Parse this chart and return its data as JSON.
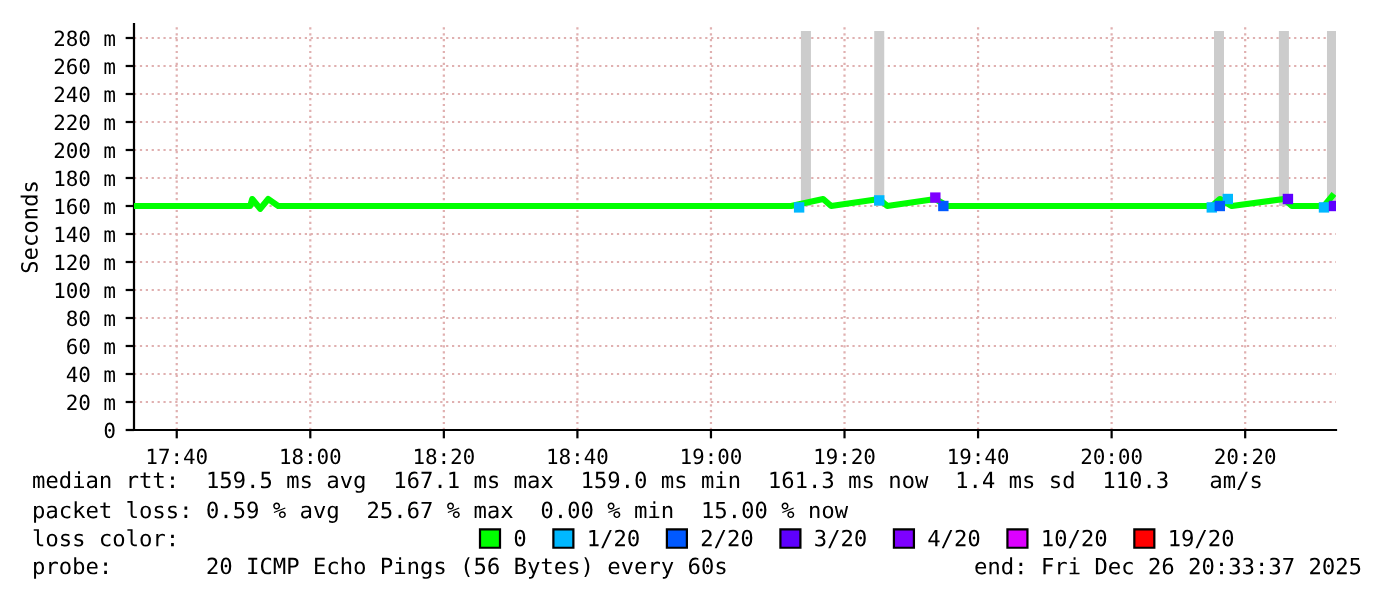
{
  "chart_data": {
    "type": "line",
    "ylabel": "Seconds",
    "legend_title": "loss color:",
    "legend": "bottom",
    "grid": true,
    "xlim": [
      17.56,
      20.56
    ],
    "ylim": [
      0,
      290
    ],
    "xticks": [
      {
        "value": 17.666667,
        "label": "17:40"
      },
      {
        "value": 18,
        "label": "18:00"
      },
      {
        "value": 18.333333,
        "label": "18:20"
      },
      {
        "value": 18.666667,
        "label": "18:40"
      },
      {
        "value": 19,
        "label": "19:00"
      },
      {
        "value": 19.333333,
        "label": "19:20"
      },
      {
        "value": 19.666667,
        "label": "19:40"
      },
      {
        "value": 20,
        "label": "20:00"
      },
      {
        "value": 20.333333,
        "label": "20:20"
      }
    ],
    "yticks": [
      0,
      {
        "value": 20,
        "label": "20 m"
      },
      {
        "value": 40,
        "label": "40 m"
      },
      {
        "value": 60,
        "label": "60 m"
      },
      {
        "value": 80,
        "label": "80 m"
      },
      {
        "value": 100,
        "label": "100 m"
      },
      {
        "value": 120,
        "label": "120 m"
      },
      {
        "value": 140,
        "label": "140 m"
      },
      {
        "value": 160,
        "label": "160 m"
      },
      {
        "value": 180,
        "label": "180 m"
      },
      {
        "value": 200,
        "label": "200 m"
      },
      {
        "value": 220,
        "label": "220 m"
      },
      {
        "value": 240,
        "label": "240 m"
      },
      {
        "value": 260,
        "label": "260 m"
      },
      {
        "value": 280,
        "label": "280 m"
      }
    ],
    "series": [
      {
        "type": "bar",
        "color": "#cccccc",
        "x": [
          19.237,
          19.42,
          20.268,
          20.43,
          20.55
        ],
        "base": [
          160,
          160,
          160,
          160,
          160
        ],
        "values": [
          125,
          125,
          125,
          125,
          125
        ]
      },
      {
        "name": "0",
        "color": "#00ff00",
        "x": [
          17.56,
          17.7,
          17.85,
          17.855,
          17.875,
          17.895,
          17.92,
          18.2,
          18.5,
          18.8,
          19.1,
          19.2,
          19.28,
          19.3,
          19.42,
          19.44,
          19.56,
          19.59,
          19.8,
          20.0,
          20.25,
          20.27,
          20.3,
          20.43,
          20.45,
          20.53,
          20.55
        ],
        "values": [
          160,
          160,
          160,
          165,
          158,
          165,
          160,
          160,
          160,
          160,
          160,
          160,
          165,
          160,
          165,
          160,
          165,
          160,
          160,
          160,
          160,
          165,
          160,
          165,
          160,
          160,
          167
        ]
      },
      {
        "name": "1/20",
        "type": "scatter",
        "marker": "square",
        "color": "#00b8ff",
        "x": [
          19.22,
          19.42,
          20.25,
          20.29,
          20.53
        ],
        "values": [
          159,
          164,
          159,
          165,
          159
        ]
      },
      {
        "name": "2/20",
        "type": "scatter",
        "marker": "square",
        "color": "#0059ff",
        "x": [
          19.58,
          20.27
        ],
        "values": [
          160,
          160
        ]
      },
      {
        "name": "3/20",
        "type": "scatter",
        "marker": "square",
        "color": "#5e00ff",
        "x": [
          20.44,
          20.555
        ],
        "values": [
          165,
          160
        ]
      },
      {
        "name": "4/20",
        "type": "scatter",
        "marker": "square",
        "color": "#7e00ff",
        "x": [
          19.56
        ],
        "values": [
          166
        ]
      },
      {
        "name": "10/20",
        "type": "scatter",
        "marker": "square",
        "color": "#dd00ff"
      },
      {
        "name": "19/20",
        "type": "scatter",
        "marker": "square",
        "color": "#ff0000"
      }
    ],
    "annotations": [
      "median rtt:  159.5 ms avg  167.1 ms max  159.0 ms min  161.3 ms now  1.4 ms sd  110.3   am/s",
      "packet loss: 0.59 % avg  25.67 % max  0.00 % min  15.00 % now",
      "probe:       20 ICMP Echo Pings (56 Bytes) every 60s",
      "end: Fri Dec 26 20:33:37 2025"
    ]
  }
}
